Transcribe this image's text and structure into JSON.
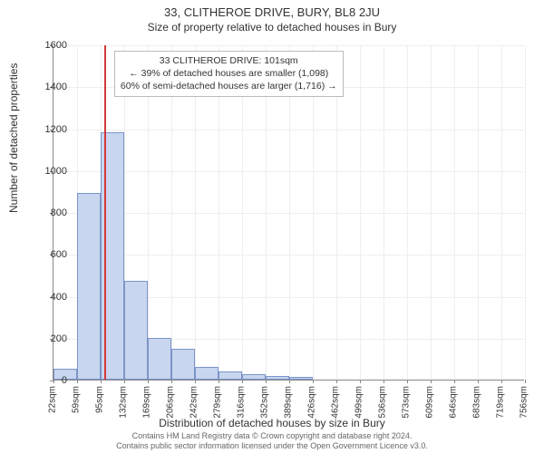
{
  "title": "33, CLITHEROE DRIVE, BURY, BL8 2JU",
  "subtitle": "Size of property relative to detached houses in Bury",
  "chart": {
    "type": "histogram",
    "ylim": [
      0,
      1600
    ],
    "yticks": [
      0,
      200,
      400,
      600,
      800,
      1000,
      1200,
      1400,
      1600
    ],
    "ylabel": "Number of detached properties",
    "xlabel": "Distribution of detached houses by size in Bury",
    "xticks": [
      "22sqm",
      "59sqm",
      "95sqm",
      "132sqm",
      "169sqm",
      "206sqm",
      "242sqm",
      "279sqm",
      "316sqm",
      "352sqm",
      "389sqm",
      "426sqm",
      "462sqm",
      "499sqm",
      "536sqm",
      "573sqm",
      "609sqm",
      "646sqm",
      "683sqm",
      "719sqm",
      "756sqm"
    ],
    "bars": [
      50,
      890,
      1180,
      470,
      200,
      145,
      60,
      40,
      25,
      18,
      12,
      0,
      0,
      0,
      0,
      0,
      0,
      0,
      0,
      0
    ],
    "bar_fill": "#c9d6ef",
    "bar_stroke": "#7a94c9",
    "grid_color": "#eeeeee",
    "axis_color": "#888888",
    "marker_index": 2,
    "marker_color": "#d43a3a",
    "background": "#ffffff"
  },
  "annotation": {
    "line1": "33 CLITHEROE DRIVE: 101sqm",
    "line2": "← 39% of detached houses are smaller (1,098)",
    "line3": "60% of semi-detached houses are larger (1,716) →"
  },
  "footer": {
    "line1": "Contains HM Land Registry data © Crown copyright and database right 2024.",
    "line2": "Contains public sector information licensed under the Open Government Licence v3.0."
  }
}
